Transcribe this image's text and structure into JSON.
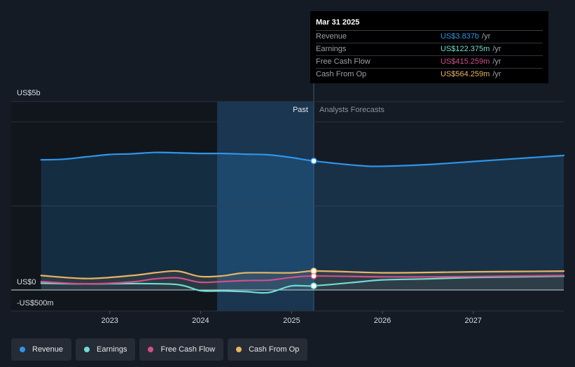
{
  "chart_data": {
    "type": "line",
    "y_axis": {
      "top_label": "US$5b",
      "zero_label": "US$0",
      "bottom_label": "-US$500m",
      "unit": "millions USD",
      "ylim": [
        -500,
        5000
      ]
    },
    "x_axis": {
      "ticks": [
        "2023",
        "2024",
        "2025",
        "2026",
        "2027"
      ],
      "range": [
        "2022-03-01",
        "2027-12-31"
      ]
    },
    "regions": {
      "past_label": "Past",
      "forecast_label": "Analysts Forecasts",
      "divider_date": "2025-03-31"
    },
    "legend_placement": "bottom",
    "grid": true,
    "series": [
      {
        "name": "Revenue",
        "key": "revenue",
        "color": "#2e96e8",
        "fill": true,
        "points": [
          [
            "2022-03-31",
            3870
          ],
          [
            "2022-06-30",
            3890
          ],
          [
            "2022-09-30",
            3960
          ],
          [
            "2022-12-31",
            4030
          ],
          [
            "2023-03-31",
            4050
          ],
          [
            "2023-06-30",
            4090
          ],
          [
            "2023-09-30",
            4080
          ],
          [
            "2023-12-31",
            4060
          ],
          [
            "2024-03-31",
            4060
          ],
          [
            "2024-06-30",
            4040
          ],
          [
            "2024-09-30",
            4020
          ],
          [
            "2024-12-31",
            3940
          ],
          [
            "2025-03-31",
            3837
          ],
          [
            "2025-09-30",
            3700
          ],
          [
            "2025-12-31",
            3680
          ],
          [
            "2026-06-30",
            3730
          ],
          [
            "2026-12-31",
            3820
          ],
          [
            "2027-06-30",
            3910
          ],
          [
            "2027-12-31",
            4000
          ]
        ]
      },
      {
        "name": "Earnings",
        "key": "earnings",
        "color": "#6fdcd0",
        "fill": false,
        "points": [
          [
            "2022-03-31",
            200
          ],
          [
            "2022-09-30",
            180
          ],
          [
            "2023-03-31",
            190
          ],
          [
            "2023-09-30",
            160
          ],
          [
            "2023-12-31",
            -20
          ],
          [
            "2024-03-31",
            -30
          ],
          [
            "2024-06-30",
            -50
          ],
          [
            "2024-09-30",
            -80
          ],
          [
            "2024-12-31",
            120
          ],
          [
            "2025-03-31",
            122
          ],
          [
            "2025-09-30",
            240
          ],
          [
            "2025-12-31",
            300
          ],
          [
            "2026-06-30",
            330
          ],
          [
            "2026-12-31",
            370
          ],
          [
            "2027-06-30",
            390
          ],
          [
            "2027-12-31",
            410
          ]
        ]
      },
      {
        "name": "Free Cash Flow",
        "key": "fcf",
        "color": "#d14f8a",
        "fill": false,
        "points": [
          [
            "2022-03-31",
            250
          ],
          [
            "2022-09-30",
            180
          ],
          [
            "2023-03-31",
            240
          ],
          [
            "2023-06-30",
            330
          ],
          [
            "2023-09-30",
            360
          ],
          [
            "2023-12-31",
            230
          ],
          [
            "2024-03-31",
            250
          ],
          [
            "2024-06-30",
            280
          ],
          [
            "2024-09-30",
            290
          ],
          [
            "2024-12-31",
            370
          ],
          [
            "2025-03-31",
            415
          ],
          [
            "2025-12-31",
            390
          ],
          [
            "2026-06-30",
            390
          ],
          [
            "2026-12-31",
            400
          ],
          [
            "2027-12-31",
            430
          ]
        ]
      },
      {
        "name": "Cash From Op",
        "key": "cfo",
        "color": "#e9b464",
        "fill": true,
        "points": [
          [
            "2022-03-31",
            430
          ],
          [
            "2022-09-30",
            340
          ],
          [
            "2023-03-31",
            430
          ],
          [
            "2023-06-30",
            510
          ],
          [
            "2023-09-30",
            560
          ],
          [
            "2023-12-31",
            400
          ],
          [
            "2024-03-31",
            420
          ],
          [
            "2024-06-30",
            510
          ],
          [
            "2024-12-31",
            510
          ],
          [
            "2025-03-31",
            564
          ],
          [
            "2025-09-30",
            530
          ],
          [
            "2025-12-31",
            510
          ],
          [
            "2026-06-30",
            520
          ],
          [
            "2026-12-31",
            540
          ],
          [
            "2027-12-31",
            560
          ]
        ]
      }
    ]
  },
  "tooltip": {
    "date": "Mar 31 2025",
    "rows": [
      {
        "label": "Revenue",
        "value": "US$3.837b",
        "unit": "/yr",
        "color": "#2e96e8"
      },
      {
        "label": "Earnings",
        "value": "US$122.375m",
        "unit": "/yr",
        "color": "#6fdcd0"
      },
      {
        "label": "Free Cash Flow",
        "value": "US$415.259m",
        "unit": "/yr",
        "color": "#d14f8a"
      },
      {
        "label": "Cash From Op",
        "value": "US$564.259m",
        "unit": "/yr",
        "color": "#e9b464"
      }
    ]
  },
  "legend": [
    {
      "label": "Revenue",
      "color": "#2e96e8"
    },
    {
      "label": "Earnings",
      "color": "#6fdcd0"
    },
    {
      "label": "Free Cash Flow",
      "color": "#d14f8a"
    },
    {
      "label": "Cash From Op",
      "color": "#e9b464"
    }
  ]
}
